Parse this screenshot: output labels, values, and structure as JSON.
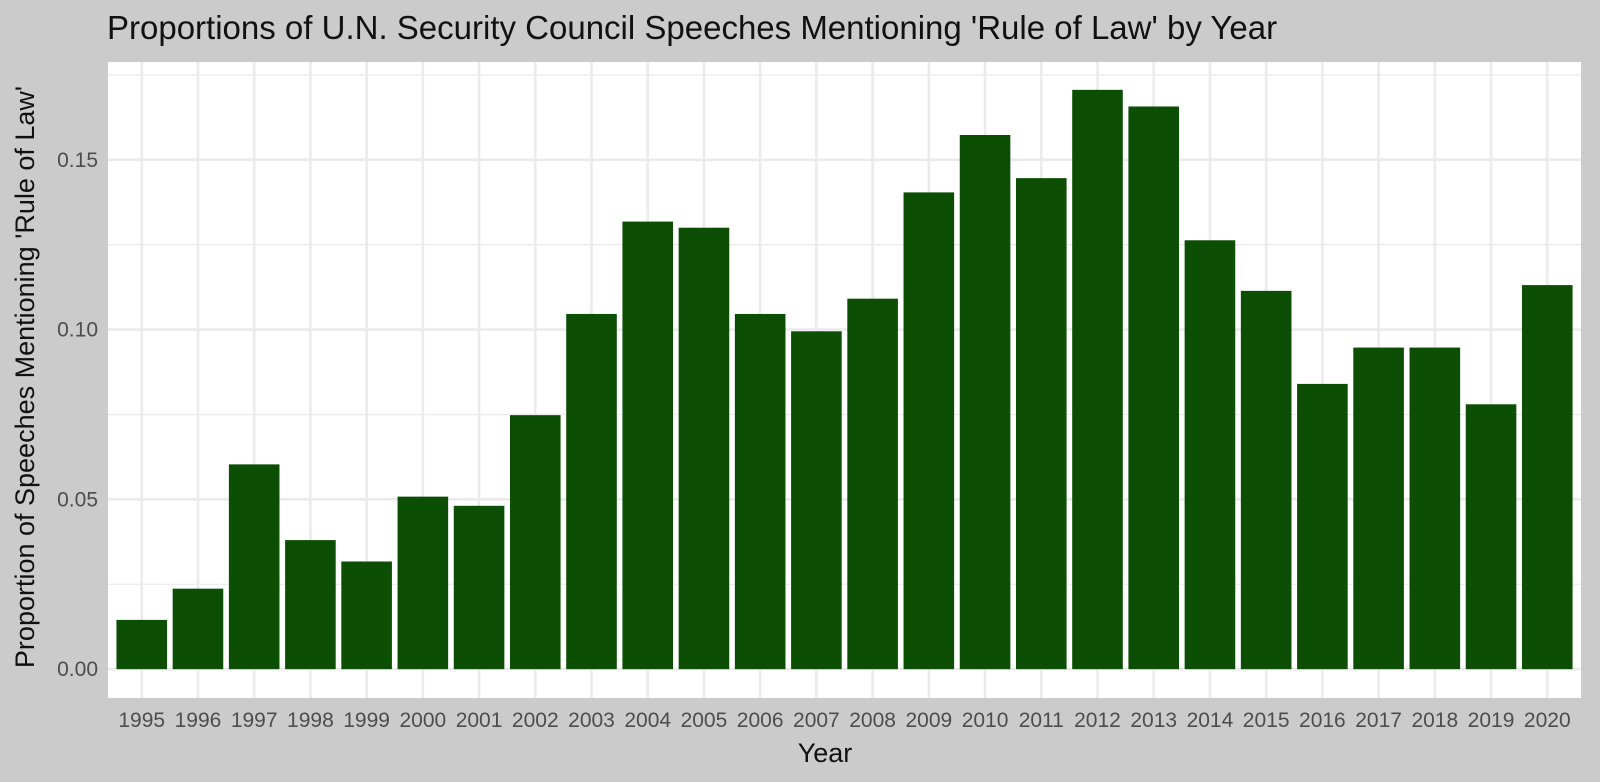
{
  "chart_data": {
    "type": "bar",
    "title": "Proportions of U.N. Security Council Speeches Mentioning 'Rule of Law' by Year",
    "xlabel": "Year",
    "ylabel": "Proportion of Speeches Mentioning 'Rule of Law'",
    "categories": [
      "1995",
      "1996",
      "1997",
      "1998",
      "1999",
      "2000",
      "2001",
      "2002",
      "2003",
      "2004",
      "2005",
      "2006",
      "2007",
      "2008",
      "2009",
      "2010",
      "2011",
      "2012",
      "2013",
      "2014",
      "2015",
      "2016",
      "2017",
      "2018",
      "2019",
      "2020"
    ],
    "values": [
      0.0145,
      0.0237,
      0.0603,
      0.038,
      0.0317,
      0.0508,
      0.0481,
      0.0748,
      0.1046,
      0.1318,
      0.13,
      0.1046,
      0.0995,
      0.1091,
      0.1404,
      0.1573,
      0.1446,
      0.1706,
      0.1657,
      0.1263,
      0.1114,
      0.084,
      0.0947,
      0.0947,
      0.078,
      0.1131
    ],
    "ylim": [
      -0.0085,
      0.1788
    ],
    "yticks": [
      0.0,
      0.05,
      0.1,
      0.15
    ],
    "ytick_labels": [
      "0.00",
      "0.05",
      "0.10",
      "0.15"
    ],
    "grid": true,
    "bar_color": "#0c4f04",
    "panel_background": "#ffffff",
    "page_background": "#cbcbcb",
    "gridline_color": "#ebebeb"
  }
}
